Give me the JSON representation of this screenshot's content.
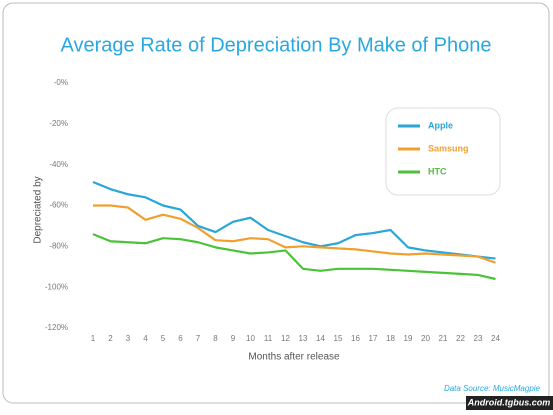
{
  "chart_data": {
    "type": "line",
    "title": "Average Rate of Depreciation By Make of Phone",
    "y_label": "Depreciated by",
    "x_label": "Months after release",
    "source": "Data Source: MusicMagpie",
    "watermark": "Android.tgbus.com",
    "categories": [
      "1",
      "2",
      "3",
      "4",
      "5",
      "6",
      "7",
      "8",
      "9",
      "10",
      "11",
      "12",
      "13",
      "14",
      "15",
      "16",
      "17",
      "18",
      "19",
      "20",
      "21",
      "22",
      "23",
      "24"
    ],
    "ylim": [
      0,
      -120
    ],
    "yticks": [
      {
        "value": 0,
        "label": "-0%"
      },
      {
        "value": -20,
        "label": "-20%"
      },
      {
        "value": -40,
        "label": "-40%"
      },
      {
        "value": -60,
        "label": "-60%"
      },
      {
        "value": -80,
        "label": "-80%"
      },
      {
        "value": -100,
        "label": "-100%"
      },
      {
        "value": -120,
        "label": "-120%"
      }
    ],
    "grid": false,
    "legend": "upper right",
    "series": [
      {
        "name": "Apple",
        "color": "#2aa6d8",
        "values": [
          -48.5,
          -52,
          -54.5,
          -56,
          -60,
          -62,
          -70,
          -73,
          -68,
          -66,
          -72,
          -75,
          -78,
          -80,
          -78.5,
          -74.5,
          -73.5,
          -72,
          -80.5,
          -82,
          -83,
          -84,
          -85,
          -86
        ]
      },
      {
        "name": "Samsung",
        "color": "#f0a030",
        "values": [
          -60,
          -60,
          -61,
          -67,
          -64.5,
          -66.5,
          -71,
          -77,
          -77.5,
          -76,
          -76.5,
          -80.5,
          -80,
          -80.5,
          -81,
          -81.5,
          -82.5,
          -83.5,
          -84,
          -83.5,
          -84,
          -84.5,
          -85,
          -88
        ]
      },
      {
        "name": "HTC",
        "color": "#4cc23a",
        "values": [
          -74,
          -77.5,
          -78,
          -78.5,
          -76,
          -76.5,
          -78,
          -80.5,
          -82,
          -83.5,
          -83,
          -82,
          -91,
          -92,
          -91,
          -91,
          -91,
          -91.5,
          -92,
          -92.5,
          -93,
          -93.5,
          -94,
          -96
        ]
      }
    ]
  }
}
